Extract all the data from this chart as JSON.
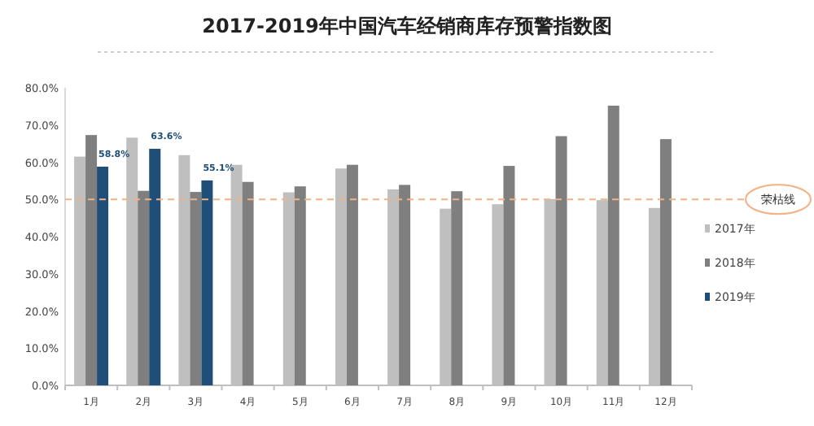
{
  "chart_data": {
    "type": "bar",
    "title": "2017-2019年中国汽车经销商库存预警指数图",
    "categories": [
      "1月",
      "2月",
      "3月",
      "4月",
      "5月",
      "6月",
      "7月",
      "8月",
      "9月",
      "10月",
      "11月",
      "12月"
    ],
    "series": [
      {
        "name": "2017年",
        "color": "#bfbfbf",
        "values": [
          61.5,
          66.6,
          61.9,
          59.3,
          51.9,
          58.3,
          52.7,
          47.5,
          48.7,
          50.1,
          49.8,
          47.7
        ]
      },
      {
        "name": "2018年",
        "color": "#7f7f7f",
        "values": [
          67.3,
          52.3,
          52.0,
          54.7,
          53.5,
          59.3,
          53.9,
          52.2,
          59.0,
          67.0,
          75.2,
          66.2
        ]
      },
      {
        "name": "2019年",
        "color": "#1f4e79",
        "values": [
          58.8,
          63.6,
          55.1,
          null,
          null,
          null,
          null,
          null,
          null,
          null,
          null,
          null
        ],
        "value_labels": [
          "58.8%",
          "63.6%",
          "55.1%",
          null,
          null,
          null,
          null,
          null,
          null,
          null,
          null,
          null
        ]
      }
    ],
    "ylim": [
      0,
      80
    ],
    "yticks": [
      {
        "value": 0,
        "label": "0.0%"
      },
      {
        "value": 10,
        "label": "10.0%"
      },
      {
        "value": 20,
        "label": "20.0%"
      },
      {
        "value": 30,
        "label": "30.0%"
      },
      {
        "value": 40,
        "label": "40.0%"
      },
      {
        "value": 50,
        "label": "50.0%"
      },
      {
        "value": 60,
        "label": "60.0%"
      },
      {
        "value": 70,
        "label": "70.0%"
      },
      {
        "value": 80,
        "label": "80.0%"
      }
    ],
    "ref_lines": [
      {
        "axis": "y",
        "value": 50,
        "label": "荣枯线",
        "color": "#f4b183",
        "line_style": "dashed"
      }
    ],
    "legend": "right"
  }
}
